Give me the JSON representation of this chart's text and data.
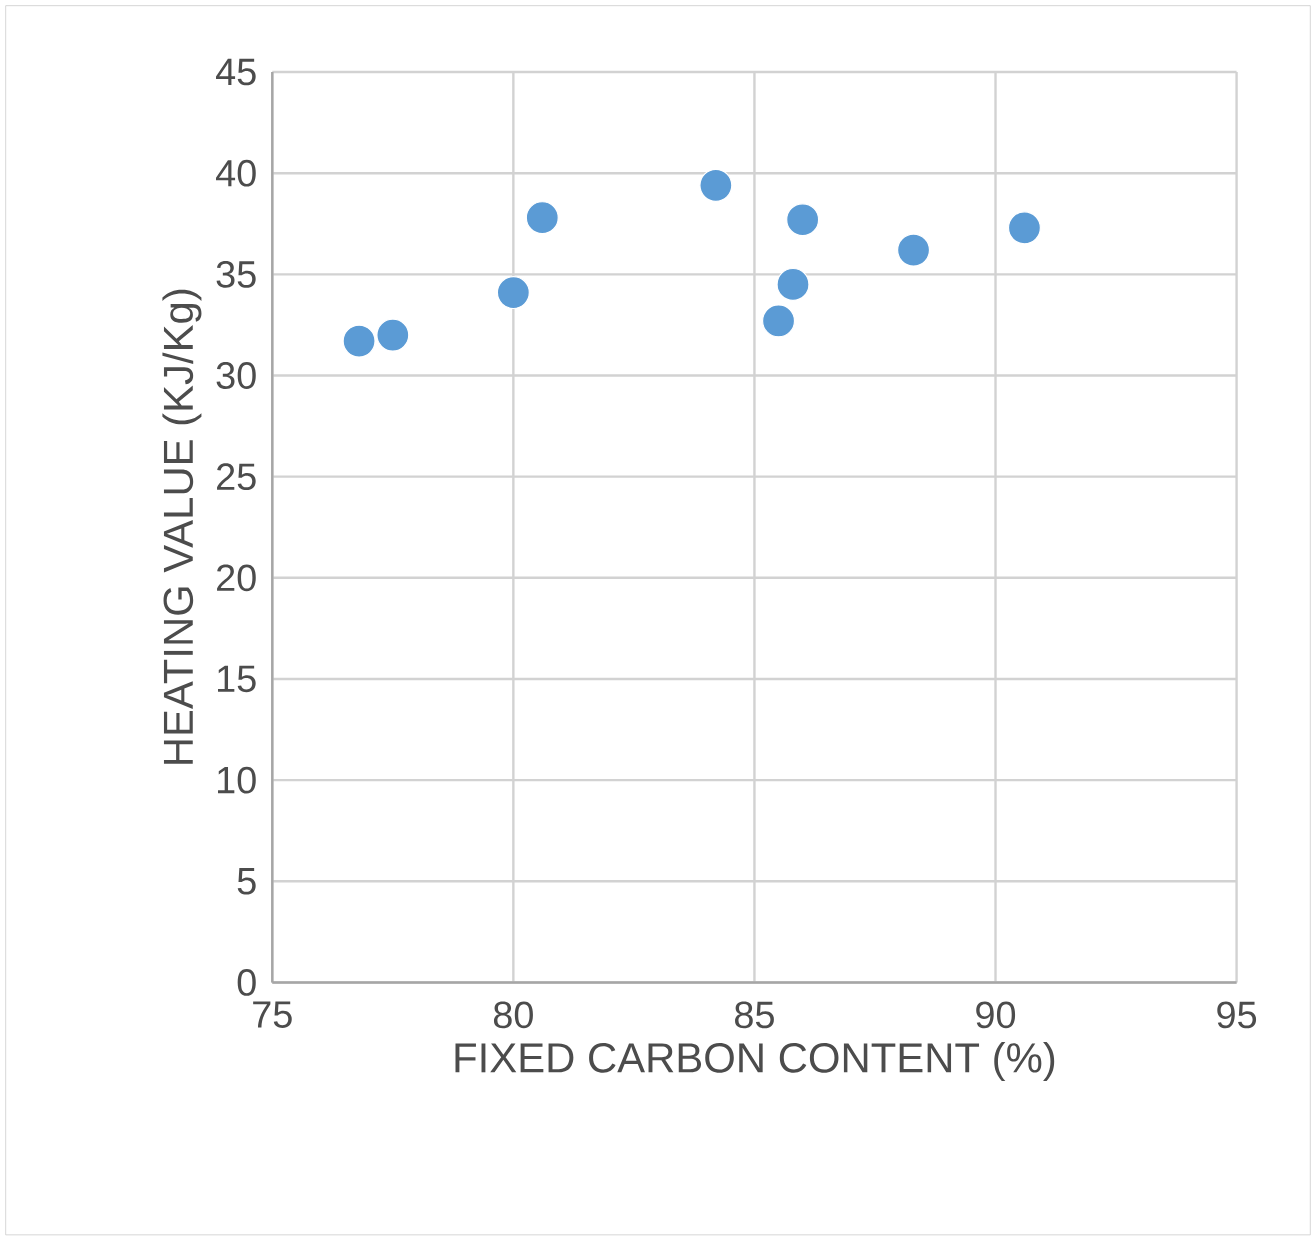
{
  "chart_data": {
    "type": "scatter",
    "xlabel": "FIXED CARBON CONTENT (%)",
    "ylabel": "HEATING VALUE (KJ/Kg)",
    "x": [
      76.8,
      77.5,
      80.0,
      80.6,
      84.2,
      85.5,
      85.8,
      86.0,
      88.3,
      90.6
    ],
    "values": [
      31.7,
      32.0,
      34.1,
      37.8,
      39.4,
      32.7,
      34.5,
      37.7,
      36.2,
      37.3
    ],
    "color": "#5b9bd5",
    "marker": "circle",
    "grid": true,
    "xlim": [
      75,
      95
    ],
    "xticks": [
      75,
      80,
      85,
      90,
      95
    ],
    "ylim": [
      0,
      45
    ],
    "yticks": [
      0,
      5,
      10,
      15,
      20,
      25,
      30,
      35,
      40,
      45
    ]
  }
}
